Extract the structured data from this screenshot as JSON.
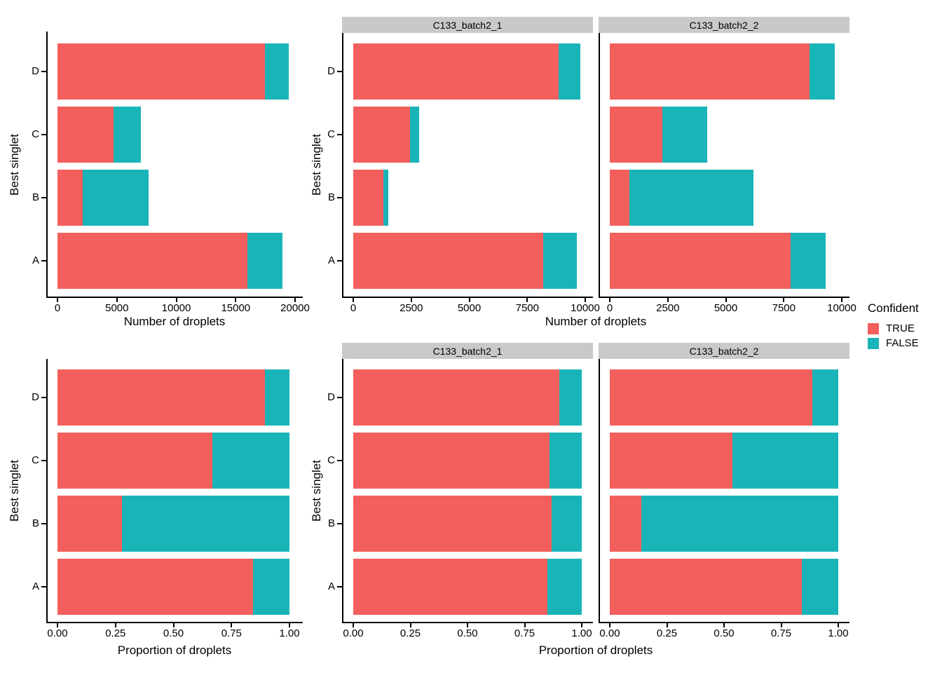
{
  "figure": {
    "description": "Faceted horizontal stacked bar charts of droplet counts and proportions by best singlet, colored by confidence"
  },
  "axes": {
    "count_label": "Number of droplets",
    "prop_label": "Proportion of droplets",
    "y_label": "Best singlet",
    "categories_top_to_bottom": [
      "D",
      "C",
      "B",
      "A"
    ],
    "count_ticks_combined": [
      "0",
      "5000",
      "10000",
      "15000",
      "20000"
    ],
    "count_ticks_facet": [
      "0",
      "2500",
      "5000",
      "7500",
      "10000"
    ],
    "prop_ticks": [
      "0.00",
      "0.25",
      "0.50",
      "0.75",
      "1.00"
    ]
  },
  "facets": [
    "C133_batch2_1",
    "C133_batch2_2"
  ],
  "legend": {
    "title": "Confident",
    "entries": [
      {
        "label": "TRUE",
        "color": "#F35F5C"
      },
      {
        "label": "FALSE",
        "color": "#19B4B8"
      }
    ]
  },
  "colors": {
    "true": "#F35F5C",
    "false": "#19B4B8",
    "strip_bg": "#C9C9C9",
    "axis": "#000000"
  },
  "chart_data": [
    {
      "id": "counts-combined",
      "type": "bar",
      "stacked": true,
      "horizontal": true,
      "title": "",
      "xlabel": "Number of droplets",
      "ylabel": "Best singlet",
      "xlim": [
        0,
        20000
      ],
      "xticks": [
        0,
        5000,
        10000,
        15000,
        20000
      ],
      "categories": [
        "A",
        "B",
        "C",
        "D"
      ],
      "series": [
        {
          "name": "TRUE",
          "color": "#F35F5C",
          "values": {
            "A": 16000,
            "B": 2150,
            "C": 4700,
            "D": 17450
          }
        },
        {
          "name": "FALSE",
          "color": "#19B4B8",
          "values": {
            "A": 2950,
            "B": 5550,
            "C": 2350,
            "D": 2050
          }
        }
      ]
    },
    {
      "id": "counts-faceted",
      "type": "bar",
      "stacked": true,
      "horizontal": true,
      "xlabel": "Number of droplets",
      "ylabel": "Best singlet",
      "xlim": [
        0,
        10000
      ],
      "xticks": [
        0,
        2500,
        5000,
        7500,
        10000
      ],
      "categories": [
        "A",
        "B",
        "C",
        "D"
      ],
      "facets": [
        {
          "label": "C133_batch2_1",
          "series": [
            {
              "name": "TRUE",
              "color": "#F35F5C",
              "values": {
                "A": 8200,
                "B": 1300,
                "C": 2450,
                "D": 8850
              }
            },
            {
              "name": "FALSE",
              "color": "#19B4B8",
              "values": {
                "A": 1450,
                "B": 200,
                "C": 400,
                "D": 950
              }
            }
          ]
        },
        {
          "label": "C133_batch2_2",
          "series": [
            {
              "name": "TRUE",
              "color": "#F35F5C",
              "values": {
                "A": 7800,
                "B": 850,
                "C": 2250,
                "D": 8600
              }
            },
            {
              "name": "FALSE",
              "color": "#19B4B8",
              "values": {
                "A": 1500,
                "B": 5350,
                "C": 1950,
                "D": 1100
              }
            }
          ]
        }
      ]
    },
    {
      "id": "proportions-combined",
      "type": "bar",
      "stacked": true,
      "horizontal": true,
      "xlabel": "Proportion of droplets",
      "ylabel": "Best singlet",
      "xlim": [
        0,
        1
      ],
      "xticks": [
        0.0,
        0.25,
        0.5,
        0.75,
        1.0
      ],
      "categories": [
        "A",
        "B",
        "C",
        "D"
      ],
      "series": [
        {
          "name": "TRUE",
          "color": "#F35F5C",
          "values": {
            "A": 0.844,
            "B": 0.279,
            "C": 0.667,
            "D": 0.895
          }
        },
        {
          "name": "FALSE",
          "color": "#19B4B8",
          "values": {
            "A": 0.156,
            "B": 0.721,
            "C": 0.333,
            "D": 0.105
          }
        }
      ]
    },
    {
      "id": "proportions-faceted",
      "type": "bar",
      "stacked": true,
      "horizontal": true,
      "xlabel": "Proportion of droplets",
      "ylabel": "Best singlet",
      "xlim": [
        0,
        1
      ],
      "xticks": [
        0.0,
        0.25,
        0.5,
        0.75,
        1.0
      ],
      "categories": [
        "A",
        "B",
        "C",
        "D"
      ],
      "facets": [
        {
          "label": "C133_batch2_1",
          "series": [
            {
              "name": "TRUE",
              "color": "#F35F5C",
              "values": {
                "A": 0.85,
                "B": 0.867,
                "C": 0.86,
                "D": 0.903
              }
            },
            {
              "name": "FALSE",
              "color": "#19B4B8",
              "values": {
                "A": 0.15,
                "B": 0.133,
                "C": 0.14,
                "D": 0.097
              }
            }
          ]
        },
        {
          "label": "C133_batch2_2",
          "series": [
            {
              "name": "TRUE",
              "color": "#F35F5C",
              "values": {
                "A": 0.839,
                "B": 0.137,
                "C": 0.536,
                "D": 0.887
              }
            },
            {
              "name": "FALSE",
              "color": "#19B4B8",
              "values": {
                "A": 0.161,
                "B": 0.863,
                "C": 0.464,
                "D": 0.113
              }
            }
          ]
        }
      ]
    }
  ]
}
